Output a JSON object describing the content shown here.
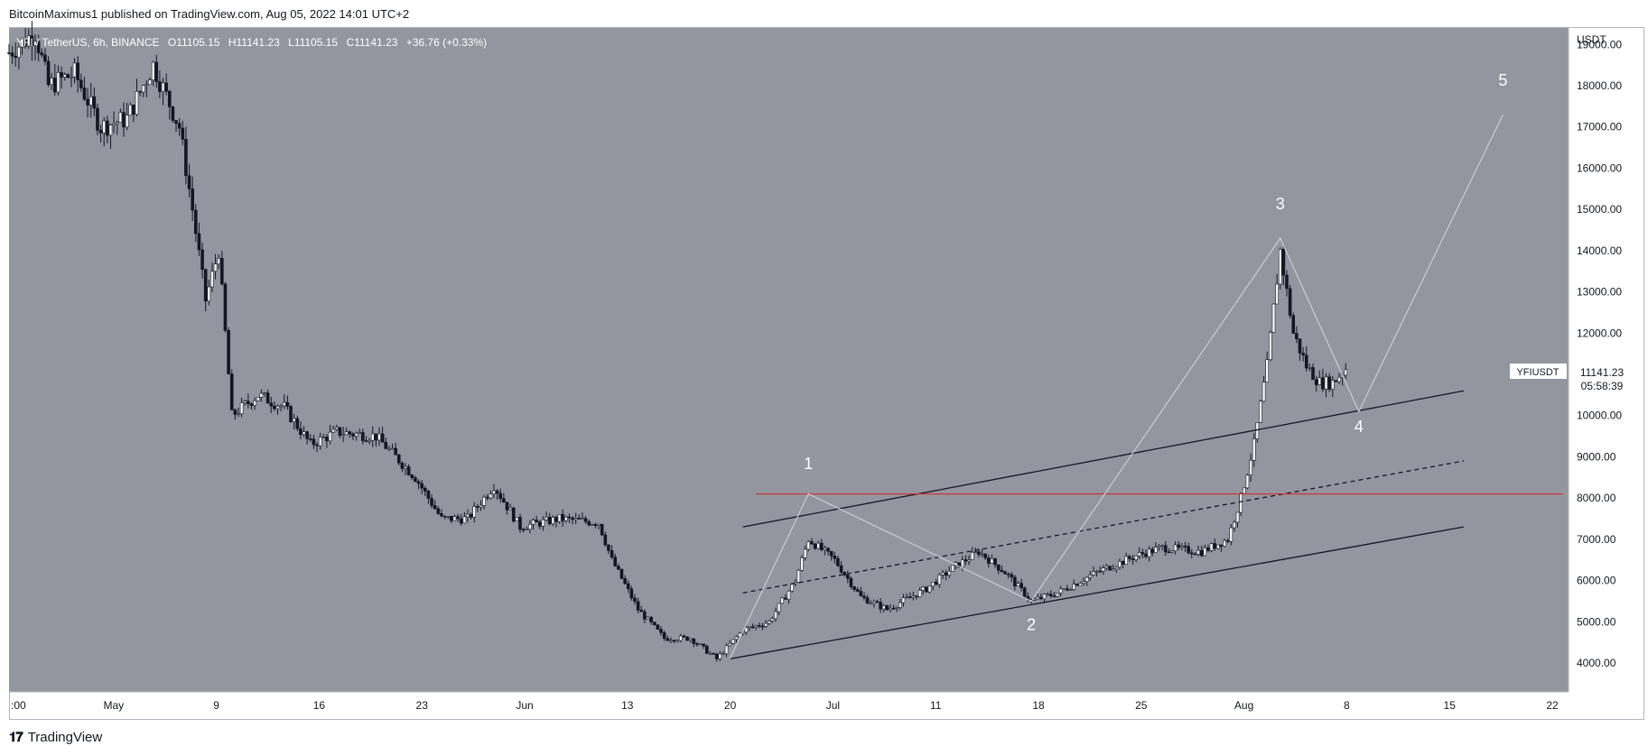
{
  "header": {
    "publisher_line": "BitcoinMaximus1 published on TradingView.com, Aug 05, 2022 14:01 UTC+2"
  },
  "footer": {
    "brand": "TradingView"
  },
  "symbol_bar": {
    "symbol": "YFI / TetherUS, 6h, BINANCE",
    "o_label": "O",
    "o_value": "11105.15",
    "h_label": "H",
    "h_value": "11141.23",
    "l_label": "L",
    "l_value": "11105.15",
    "c_label": "C",
    "c_value": "11141.23",
    "change": "+36.76 (+0.33%)"
  },
  "price_axis": {
    "unit": "USDT",
    "ticks": [
      "19000.00",
      "18000.00",
      "17000.00",
      "16000.00",
      "15000.00",
      "14000.00",
      "13000.00",
      "12000.00",
      "11000.00",
      "10000.00",
      "9000.00",
      "8000.00",
      "7000.00",
      "6000.00",
      "5000.00",
      "4000.00"
    ],
    "tag_symbol": "YFIUSDT",
    "tag_price": "11141.23",
    "tag_countdown": "05:58:39"
  },
  "time_axis": {
    "ticks": [
      ":00",
      "May",
      "9",
      "16",
      "23",
      "Jun",
      "13",
      "20",
      "Jul",
      "11",
      "18",
      "25",
      "Aug",
      "8",
      "15",
      "22"
    ]
  },
  "wave_labels": [
    "1",
    "2",
    "3",
    "4",
    "5"
  ],
  "colors": {
    "background": "#93969f",
    "candle": "#131722",
    "channel": "#131722",
    "resistance": "#d32f2f",
    "wave_path": "#c9ccd3",
    "label": "#ffffff"
  },
  "chart_data": {
    "type": "candlestick",
    "title": "YFI / TetherUS, 6h, BINANCE",
    "ylabel": "USDT",
    "ylim": [
      3300,
      19400
    ],
    "x_range": [
      "2022-04-25",
      "2022-08-22"
    ],
    "last_price": 11141.23,
    "price_path": [
      [
        "2022-04-25",
        18800
      ],
      [
        "2022-04-27",
        19300
      ],
      [
        "2022-04-28",
        18000
      ],
      [
        "2022-04-30",
        18300
      ],
      [
        "2022-05-02",
        17000
      ],
      [
        "2022-05-04",
        17200
      ],
      [
        "2022-05-06",
        18500
      ],
      [
        "2022-05-08",
        17000
      ],
      [
        "2022-05-09",
        15000
      ],
      [
        "2022-05-10",
        12800
      ],
      [
        "2022-05-11",
        14000
      ],
      [
        "2022-05-12",
        10000
      ],
      [
        "2022-05-14",
        10500
      ],
      [
        "2022-05-16",
        10200
      ],
      [
        "2022-05-18",
        9300
      ],
      [
        "2022-05-20",
        9600
      ],
      [
        "2022-05-23",
        9500
      ],
      [
        "2022-05-26",
        8500
      ],
      [
        "2022-05-28",
        7500
      ],
      [
        "2022-05-30",
        7500
      ],
      [
        "2022-06-01",
        8300
      ],
      [
        "2022-06-03",
        7300
      ],
      [
        "2022-06-06",
        7500
      ],
      [
        "2022-06-09",
        7400
      ],
      [
        "2022-06-10",
        6500
      ],
      [
        "2022-06-12",
        5300
      ],
      [
        "2022-06-14",
        4600
      ],
      [
        "2022-06-16",
        4600
      ],
      [
        "2022-06-18",
        4100
      ],
      [
        "2022-06-20",
        4800
      ],
      [
        "2022-06-22",
        5000
      ],
      [
        "2022-06-24",
        6000
      ],
      [
        "2022-06-25",
        7000
      ],
      [
        "2022-06-27",
        6500
      ],
      [
        "2022-06-29",
        5600
      ],
      [
        "2022-07-01",
        5300
      ],
      [
        "2022-07-04",
        5800
      ],
      [
        "2022-07-06",
        6300
      ],
      [
        "2022-07-08",
        6700
      ],
      [
        "2022-07-10",
        6200
      ],
      [
        "2022-07-12",
        5500
      ],
      [
        "2022-07-14",
        5700
      ],
      [
        "2022-07-17",
        6200
      ],
      [
        "2022-07-20",
        6600
      ],
      [
        "2022-07-22",
        6800
      ],
      [
        "2022-07-25",
        6700
      ],
      [
        "2022-07-27",
        7000
      ],
      [
        "2022-07-28",
        8000
      ],
      [
        "2022-07-29",
        9300
      ],
      [
        "2022-07-30",
        11200
      ],
      [
        "2022-07-31",
        14000
      ],
      [
        "2022-08-01",
        12000
      ],
      [
        "2022-08-02",
        11200
      ],
      [
        "2022-08-03",
        10800
      ],
      [
        "2022-08-04",
        10800
      ],
      [
        "2022-08-05",
        11141
      ]
    ],
    "channel": {
      "upper": [
        [
          "2022-06-20",
          7300
        ],
        [
          "2022-08-14",
          10600
        ]
      ],
      "middle": [
        [
          "2022-06-20",
          5700
        ],
        [
          "2022-08-14",
          8900
        ]
      ],
      "lower": [
        [
          "2022-06-19",
          4100
        ],
        [
          "2022-08-14",
          7300
        ]
      ]
    },
    "resistance": {
      "y": 8100,
      "from": "2022-06-21"
    },
    "wave_path": [
      [
        "2022-06-19",
        4100
      ],
      [
        "2022-06-25",
        8100
      ],
      [
        "2022-07-12",
        5500
      ],
      [
        "2022-07-31",
        14300
      ],
      [
        "2022-08-06",
        10100
      ],
      [
        "2022-08-17",
        17300
      ]
    ],
    "waves": [
      {
        "label": "1",
        "x": "2022-06-25",
        "y": 8700
      },
      {
        "label": "2",
        "x": "2022-07-12",
        "y": 4800
      },
      {
        "label": "3",
        "x": "2022-07-31",
        "y": 15000
      },
      {
        "label": "4",
        "x": "2022-08-06",
        "y": 9600
      },
      {
        "label": "5",
        "x": "2022-08-17",
        "y": 18000
      }
    ]
  }
}
